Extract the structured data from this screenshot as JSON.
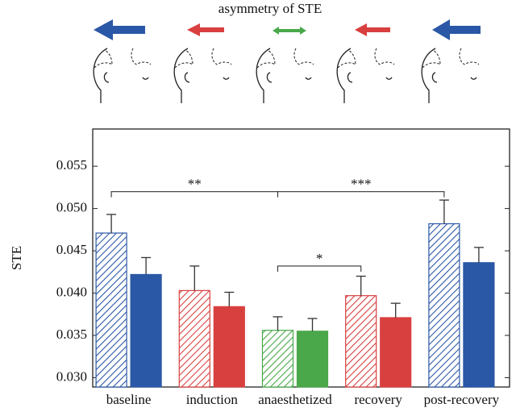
{
  "chart_data": {
    "type": "bar",
    "title": "asymmetry of STE",
    "ylabel": "STE",
    "categories": [
      "baseline",
      "induction",
      "anaesthetized",
      "recovery",
      "post-recovery"
    ],
    "series": [
      {
        "hatch": true,
        "colors": [
          "#2b58a6",
          "#d8403f",
          "#4aa84a",
          "#d8403f",
          "#2b58a6"
        ],
        "values": [
          0.0471,
          0.0403,
          0.0356,
          0.0397,
          0.0482
        ],
        "errors": [
          0.0022,
          0.0029,
          0.0016,
          0.0023,
          0.0028
        ]
      },
      {
        "hatch": false,
        "colors": [
          "#2b58a6",
          "#d8403f",
          "#4aa84a",
          "#d8403f",
          "#2b58a6"
        ],
        "values": [
          0.0422,
          0.0384,
          0.0355,
          0.0371,
          0.0436
        ],
        "errors": [
          0.002,
          0.0017,
          0.0015,
          0.0017,
          0.0018
        ]
      }
    ],
    "ylim": [
      0.0289,
      0.0594
    ],
    "yticks": [
      {
        "value": 0.03,
        "label": "0.030"
      },
      0.035,
      {
        "value": 0.04,
        "label": "0.040"
      },
      0.045,
      {
        "value": 0.05,
        "label": "0.050"
      },
      0.055
    ],
    "annotations": [
      {
        "text": "**",
        "from": 0,
        "to": 2,
        "y": 0.052
      },
      {
        "text": "***",
        "from": 2,
        "to": 4,
        "y": 0.052
      },
      {
        "text": "*",
        "from": 2,
        "to": 3,
        "y": 0.0432
      }
    ]
  }
}
